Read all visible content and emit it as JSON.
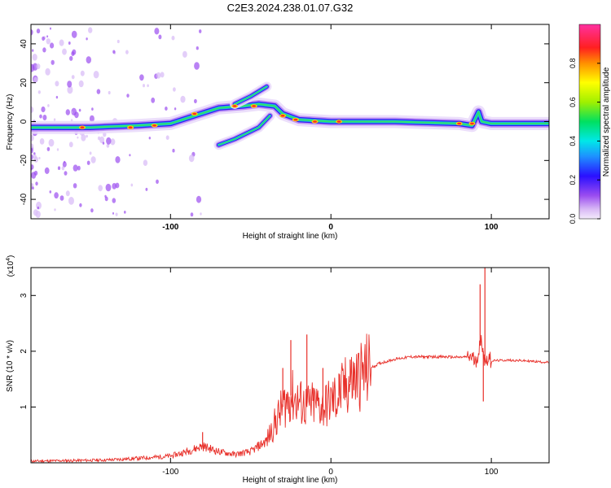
{
  "title": "C2E3.2024.238.01.07.G32",
  "chart_data": [
    {
      "type": "heatmap",
      "xlabel": "Height of straight line (km)",
      "ylabel": "Frequency (Hz)",
      "xlim": [
        -187,
        136
      ],
      "ylim": [
        -50,
        50
      ],
      "xticks": [
        -100,
        0,
        100
      ],
      "yticks": [
        -40,
        -20,
        0,
        20,
        40
      ],
      "colorbar": {
        "label": "Normalized spectral amplitude",
        "range": [
          0,
          1
        ],
        "ticks": [
          "0.0",
          "0.2",
          "0.4",
          "0.6",
          "0.8"
        ]
      },
      "ridges": [
        {
          "points": [
            [
              -187,
              -3
            ],
            [
              -150,
              -3
            ],
            [
              -120,
              -2
            ],
            [
              -100,
              -1
            ],
            [
              -85,
              3
            ],
            [
              -70,
              7
            ],
            [
              -55,
              8
            ],
            [
              -45,
              9
            ],
            [
              -35,
              8
            ],
            [
              -30,
              4
            ],
            [
              -20,
              1
            ],
            [
              0,
              0
            ],
            [
              40,
              0
            ],
            [
              80,
              -1
            ],
            [
              88,
              -2
            ],
            [
              92,
              5
            ],
            [
              94,
              0
            ],
            [
              100,
              -1
            ],
            [
              136,
              -1
            ]
          ]
        },
        {
          "points": [
            [
              -70,
              -12
            ],
            [
              -60,
              -9
            ],
            [
              -45,
              -3
            ],
            [
              -38,
              3
            ]
          ]
        },
        {
          "points": [
            [
              -60,
              9
            ],
            [
              -50,
              13
            ],
            [
              -40,
              18
            ]
          ]
        }
      ],
      "hotspots": [
        [
          -155,
          -3
        ],
        [
          -125,
          -3
        ],
        [
          -110,
          -2
        ],
        [
          -85,
          4
        ],
        [
          -60,
          8
        ],
        [
          -48,
          8
        ],
        [
          -30,
          3
        ],
        [
          -22,
          1
        ],
        [
          -10,
          0
        ],
        [
          5,
          0
        ],
        [
          80,
          -1
        ],
        [
          88,
          -1
        ]
      ]
    },
    {
      "type": "line",
      "xlabel": "Height of straight line (km)",
      "ylabel": "SNR (10 * v/v)",
      "y_multiplier": "(x10^4)",
      "xlim": [
        -187,
        136
      ],
      "ylim": [
        0,
        35000
      ],
      "xticks": [
        -100,
        0,
        100
      ],
      "yticks": [
        1,
        2,
        3
      ],
      "series": [
        {
          "color": "#e8302a",
          "points": [
            [
              -187,
              300
            ],
            [
              -160,
              400
            ],
            [
              -140,
              500
            ],
            [
              -120,
              800
            ],
            [
              -100,
              1200
            ],
            [
              -90,
              2000
            ],
            [
              -80,
              3000
            ],
            [
              -70,
              2000
            ],
            [
              -60,
              1500
            ],
            [
              -50,
              2000
            ],
            [
              -40,
              4000
            ],
            [
              -35,
              7000
            ],
            [
              -30,
              10000
            ],
            [
              -25,
              12000
            ],
            [
              -20,
              11000
            ],
            [
              -15,
              10000
            ],
            [
              -10,
              10500
            ],
            [
              -5,
              10000
            ],
            [
              0,
              11000
            ],
            [
              5,
              12000
            ],
            [
              10,
              14000
            ],
            [
              15,
              15000
            ],
            [
              20,
              16000
            ],
            [
              25,
              17000
            ],
            [
              30,
              17800
            ],
            [
              40,
              18600
            ],
            [
              50,
              19000
            ],
            [
              60,
              19000
            ],
            [
              70,
              19000
            ],
            [
              80,
              18900
            ],
            [
              85,
              19000
            ],
            [
              88,
              19000
            ],
            [
              90,
              18000
            ],
            [
              92,
              20000
            ],
            [
              94,
              22000
            ],
            [
              96,
              18000
            ],
            [
              98,
              19000
            ],
            [
              100,
              18300
            ],
            [
              110,
              18400
            ],
            [
              120,
              18300
            ],
            [
              136,
              18000
            ]
          ],
          "spikes": [
            [
              -80,
              5500
            ],
            [
              -30,
              17000
            ],
            [
              -25,
              22000
            ],
            [
              -15,
              23000
            ],
            [
              -5,
              17000
            ],
            [
              5,
              16000
            ],
            [
              12,
              18500
            ],
            [
              93,
              32000
            ],
            [
              96,
              35000
            ],
            [
              95,
              11000
            ]
          ]
        }
      ]
    }
  ]
}
